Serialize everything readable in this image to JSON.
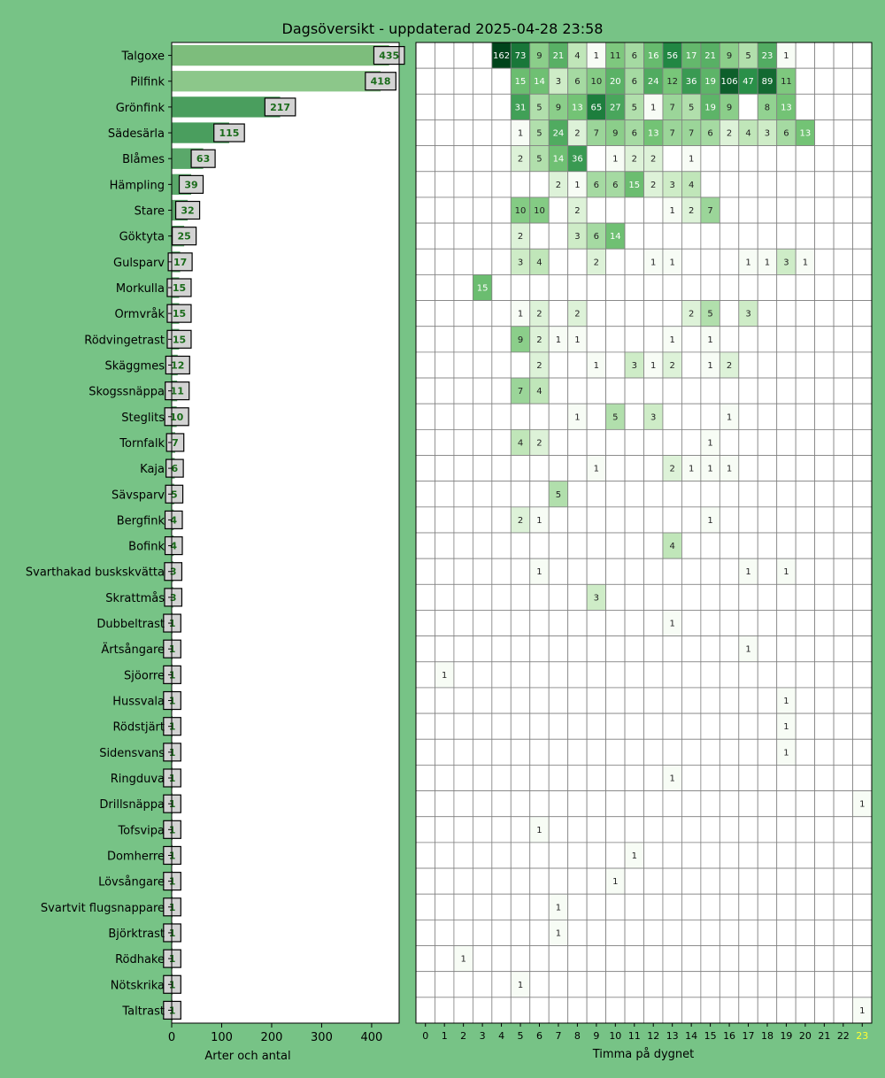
{
  "colors": {
    "background": "#77c386",
    "highlight_hour": "#ffff33"
  },
  "chart_data": [
    {
      "type": "bar",
      "orientation": "horizontal",
      "title": "Dagsöversikt - uppdaterad 2025-04-28 23:58",
      "xlabel": "Arter och antal",
      "ylabel": "",
      "xlim": [
        0,
        455
      ],
      "xticks": [
        0,
        100,
        200,
        300,
        400
      ],
      "grid": false,
      "categories": [
        "Talgoxe",
        "Pilfink",
        "Grönfink",
        "Sädesärla",
        "Blåmes",
        "Hämpling",
        "Stare",
        "Göktyta",
        "Gulsparv",
        "Morkulla",
        "Ormvråk",
        "Rödvingetrast",
        "Skäggmes",
        "Skogssnäppa",
        "Steglits",
        "Tornfalk",
        "Kaja",
        "Sävsparv",
        "Bergfink",
        "Bofink",
        "Svarthakad buskskvätta",
        "Skrattmås",
        "Dubbeltrast",
        "Ärtsångare",
        "Sjöorre",
        "Hussvala",
        "Rödstjärt",
        "Sidensvans",
        "Ringduva",
        "Drillsnäppa",
        "Tofsvipa",
        "Domherre",
        "Lövsångare",
        "Svartvit flugsnappare",
        "Björktrast",
        "Rödhake",
        "Nötskrika",
        "Taltrast"
      ],
      "values": [
        435,
        418,
        217,
        115,
        63,
        39,
        32,
        25,
        17,
        15,
        15,
        15,
        12,
        11,
        10,
        7,
        6,
        5,
        4,
        4,
        3,
        3,
        1,
        1,
        1,
        1,
        1,
        1,
        1,
        1,
        1,
        1,
        1,
        1,
        1,
        1,
        1,
        1
      ]
    },
    {
      "type": "heatmap",
      "xlabel": "Timma på dygnet",
      "x": [
        0,
        1,
        2,
        3,
        4,
        5,
        6,
        7,
        8,
        9,
        10,
        11,
        12,
        13,
        14,
        15,
        16,
        17,
        18,
        19,
        20,
        21,
        22,
        23
      ],
      "highlighted_hour": 23,
      "rows": [
        "Talgoxe",
        "Pilfink",
        "Grönfink",
        "Sädesärla",
        "Blåmes",
        "Hämpling",
        "Stare",
        "Göktyta",
        "Gulsparv",
        "Morkulla",
        "Ormvråk",
        "Rödvingetrast",
        "Skäggmes",
        "Skogssnäppa",
        "Steglits",
        "Tornfalk",
        "Kaja",
        "Sävsparv",
        "Bergfink",
        "Bofink",
        "Svarthakad buskskvätta",
        "Skrattmås",
        "Dubbeltrast",
        "Ärtsångare",
        "Sjöorre",
        "Hussvala",
        "Rödstjärt",
        "Sidensvans",
        "Ringduva",
        "Drillsnäppa",
        "Tofsvipa",
        "Domherre",
        "Lövsångare",
        "Svartvit flugsnappare",
        "Björktrast",
        "Rödhake",
        "Nötskrika",
        "Taltrast"
      ],
      "values": [
        [
          0,
          0,
          0,
          0,
          162,
          73,
          9,
          21,
          4,
          1,
          11,
          6,
          16,
          56,
          17,
          21,
          9,
          5,
          23,
          1,
          0,
          0,
          0,
          0
        ],
        [
          0,
          0,
          0,
          0,
          0,
          15,
          14,
          3,
          6,
          10,
          20,
          6,
          24,
          12,
          36,
          19,
          106,
          47,
          89,
          11,
          0,
          0,
          0,
          0
        ],
        [
          0,
          0,
          0,
          0,
          0,
          31,
          5,
          9,
          13,
          65,
          27,
          5,
          1,
          7,
          5,
          19,
          9,
          0,
          8,
          13,
          0,
          0,
          0,
          0
        ],
        [
          0,
          0,
          0,
          0,
          0,
          1,
          5,
          24,
          2,
          7,
          9,
          6,
          13,
          7,
          7,
          6,
          2,
          4,
          3,
          6,
          13,
          0,
          0,
          0
        ],
        [
          0,
          0,
          0,
          0,
          0,
          2,
          5,
          14,
          36,
          0,
          1,
          2,
          2,
          0,
          1,
          0,
          0,
          0,
          0,
          0,
          0,
          0,
          0,
          0
        ],
        [
          0,
          0,
          0,
          0,
          0,
          0,
          0,
          2,
          1,
          6,
          6,
          15,
          2,
          3,
          4,
          0,
          0,
          0,
          0,
          0,
          0,
          0,
          0,
          0
        ],
        [
          0,
          0,
          0,
          0,
          0,
          10,
          10,
          0,
          2,
          0,
          0,
          0,
          0,
          1,
          2,
          7,
          0,
          0,
          0,
          0,
          0,
          0,
          0,
          0
        ],
        [
          0,
          0,
          0,
          0,
          0,
          2,
          0,
          0,
          3,
          6,
          14,
          0,
          0,
          0,
          0,
          0,
          0,
          0,
          0,
          0,
          0,
          0,
          0,
          0
        ],
        [
          0,
          0,
          0,
          0,
          0,
          3,
          4,
          0,
          0,
          2,
          0,
          0,
          1,
          1,
          0,
          0,
          0,
          1,
          1,
          3,
          1,
          0,
          0,
          0
        ],
        [
          0,
          0,
          0,
          15,
          0,
          0,
          0,
          0,
          0,
          0,
          0,
          0,
          0,
          0,
          0,
          0,
          0,
          0,
          0,
          0,
          0,
          0,
          0,
          0
        ],
        [
          0,
          0,
          0,
          0,
          0,
          1,
          2,
          0,
          2,
          0,
          0,
          0,
          0,
          0,
          2,
          5,
          0,
          3,
          0,
          0,
          0,
          0,
          0,
          0
        ],
        [
          0,
          0,
          0,
          0,
          0,
          9,
          2,
          1,
          1,
          0,
          0,
          0,
          0,
          1,
          0,
          1,
          0,
          0,
          0,
          0,
          0,
          0,
          0,
          0
        ],
        [
          0,
          0,
          0,
          0,
          0,
          0,
          2,
          0,
          0,
          1,
          0,
          3,
          1,
          2,
          0,
          1,
          2,
          0,
          0,
          0,
          0,
          0,
          0,
          0
        ],
        [
          0,
          0,
          0,
          0,
          0,
          7,
          4,
          0,
          0,
          0,
          0,
          0,
          0,
          0,
          0,
          0,
          0,
          0,
          0,
          0,
          0,
          0,
          0,
          0
        ],
        [
          0,
          0,
          0,
          0,
          0,
          0,
          0,
          0,
          1,
          0,
          5,
          0,
          3,
          0,
          0,
          0,
          1,
          0,
          0,
          0,
          0,
          0,
          0,
          0
        ],
        [
          0,
          0,
          0,
          0,
          0,
          4,
          2,
          0,
          0,
          0,
          0,
          0,
          0,
          0,
          0,
          1,
          0,
          0,
          0,
          0,
          0,
          0,
          0,
          0
        ],
        [
          0,
          0,
          0,
          0,
          0,
          0,
          0,
          0,
          0,
          1,
          0,
          0,
          0,
          2,
          1,
          1,
          1,
          0,
          0,
          0,
          0,
          0,
          0,
          0
        ],
        [
          0,
          0,
          0,
          0,
          0,
          0,
          0,
          5,
          0,
          0,
          0,
          0,
          0,
          0,
          0,
          0,
          0,
          0,
          0,
          0,
          0,
          0,
          0,
          0
        ],
        [
          0,
          0,
          0,
          0,
          0,
          2,
          1,
          0,
          0,
          0,
          0,
          0,
          0,
          0,
          0,
          1,
          0,
          0,
          0,
          0,
          0,
          0,
          0,
          0
        ],
        [
          0,
          0,
          0,
          0,
          0,
          0,
          0,
          0,
          0,
          0,
          0,
          0,
          0,
          4,
          0,
          0,
          0,
          0,
          0,
          0,
          0,
          0,
          0,
          0
        ],
        [
          0,
          0,
          0,
          0,
          0,
          0,
          1,
          0,
          0,
          0,
          0,
          0,
          0,
          0,
          0,
          0,
          0,
          1,
          0,
          1,
          0,
          0,
          0,
          0
        ],
        [
          0,
          0,
          0,
          0,
          0,
          0,
          0,
          0,
          0,
          3,
          0,
          0,
          0,
          0,
          0,
          0,
          0,
          0,
          0,
          0,
          0,
          0,
          0,
          0
        ],
        [
          0,
          0,
          0,
          0,
          0,
          0,
          0,
          0,
          0,
          0,
          0,
          0,
          0,
          1,
          0,
          0,
          0,
          0,
          0,
          0,
          0,
          0,
          0,
          0
        ],
        [
          0,
          0,
          0,
          0,
          0,
          0,
          0,
          0,
          0,
          0,
          0,
          0,
          0,
          0,
          0,
          0,
          0,
          1,
          0,
          0,
          0,
          0,
          0,
          0
        ],
        [
          0,
          1,
          0,
          0,
          0,
          0,
          0,
          0,
          0,
          0,
          0,
          0,
          0,
          0,
          0,
          0,
          0,
          0,
          0,
          0,
          0,
          0,
          0,
          0
        ],
        [
          0,
          0,
          0,
          0,
          0,
          0,
          0,
          0,
          0,
          0,
          0,
          0,
          0,
          0,
          0,
          0,
          0,
          0,
          0,
          1,
          0,
          0,
          0,
          0
        ],
        [
          0,
          0,
          0,
          0,
          0,
          0,
          0,
          0,
          0,
          0,
          0,
          0,
          0,
          0,
          0,
          0,
          0,
          0,
          0,
          1,
          0,
          0,
          0,
          0
        ],
        [
          0,
          0,
          0,
          0,
          0,
          0,
          0,
          0,
          0,
          0,
          0,
          0,
          0,
          0,
          0,
          0,
          0,
          0,
          0,
          1,
          0,
          0,
          0,
          0
        ],
        [
          0,
          0,
          0,
          0,
          0,
          0,
          0,
          0,
          0,
          0,
          0,
          0,
          0,
          1,
          0,
          0,
          0,
          0,
          0,
          0,
          0,
          0,
          0,
          0
        ],
        [
          0,
          0,
          0,
          0,
          0,
          0,
          0,
          0,
          0,
          0,
          0,
          0,
          0,
          0,
          0,
          0,
          0,
          0,
          0,
          0,
          0,
          0,
          0,
          1
        ],
        [
          0,
          0,
          0,
          0,
          0,
          0,
          1,
          0,
          0,
          0,
          0,
          0,
          0,
          0,
          0,
          0,
          0,
          0,
          0,
          0,
          0,
          0,
          0,
          0
        ],
        [
          0,
          0,
          0,
          0,
          0,
          0,
          0,
          0,
          0,
          0,
          0,
          1,
          0,
          0,
          0,
          0,
          0,
          0,
          0,
          0,
          0,
          0,
          0,
          0
        ],
        [
          0,
          0,
          0,
          0,
          0,
          0,
          0,
          0,
          0,
          0,
          1,
          0,
          0,
          0,
          0,
          0,
          0,
          0,
          0,
          0,
          0,
          0,
          0,
          0
        ],
        [
          0,
          0,
          0,
          0,
          0,
          0,
          0,
          1,
          0,
          0,
          0,
          0,
          0,
          0,
          0,
          0,
          0,
          0,
          0,
          0,
          0,
          0,
          0,
          0
        ],
        [
          0,
          0,
          0,
          0,
          0,
          0,
          0,
          1,
          0,
          0,
          0,
          0,
          0,
          0,
          0,
          0,
          0,
          0,
          0,
          0,
          0,
          0,
          0,
          0
        ],
        [
          0,
          0,
          1,
          0,
          0,
          0,
          0,
          0,
          0,
          0,
          0,
          0,
          0,
          0,
          0,
          0,
          0,
          0,
          0,
          0,
          0,
          0,
          0,
          0
        ],
        [
          0,
          0,
          0,
          0,
          0,
          1,
          0,
          0,
          0,
          0,
          0,
          0,
          0,
          0,
          0,
          0,
          0,
          0,
          0,
          0,
          0,
          0,
          0,
          0
        ],
        [
          0,
          0,
          0,
          0,
          0,
          0,
          0,
          0,
          0,
          0,
          0,
          0,
          0,
          0,
          0,
          0,
          0,
          0,
          0,
          0,
          0,
          0,
          0,
          1
        ]
      ]
    }
  ]
}
